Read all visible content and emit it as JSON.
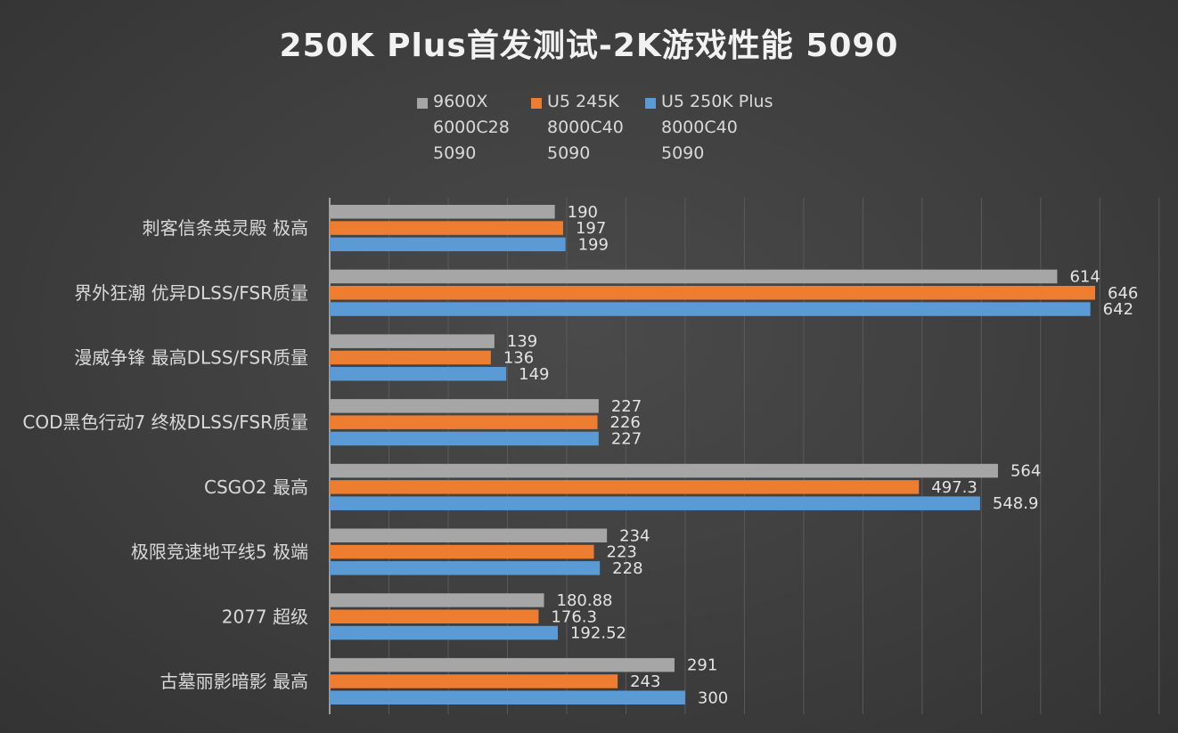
{
  "chart_data": {
    "type": "bar",
    "orientation": "horizontal",
    "title": "250K Plus首发测试-2K游戏性能 5090",
    "xlabel": "",
    "ylabel": "",
    "xlim": [
      0,
      700
    ],
    "grid": true,
    "legend_position": "top-center",
    "categories": [
      "刺客信条英灵殿 极高",
      "界外狂潮 优异DLSS/FSR质量",
      "漫威争锋 最高DLSS/FSR质量",
      "COD黑色行动7 终极DLSS/FSR质量",
      "CSGO2 最高",
      "极限竞速地平线5 极端",
      "2077 超级",
      "古墓丽影暗影 最高"
    ],
    "series": [
      {
        "name": "9600X",
        "legend_lines": [
          "9600X",
          "6000C28",
          "5090"
        ],
        "color": "#a6a6a6",
        "values": [
          190,
          614,
          139,
          227,
          564,
          234,
          180.88,
          291
        ]
      },
      {
        "name": "U5 245K",
        "legend_lines": [
          "U5 245K",
          "8000C40",
          "5090"
        ],
        "color": "#ed7d31",
        "values": [
          197,
          646,
          136,
          226,
          497.3,
          223,
          176.3,
          243
        ]
      },
      {
        "name": "U5 250K Plus",
        "legend_lines": [
          "U5 250K Plus",
          "8000C40",
          "5090"
        ],
        "color": "#5b9bd5",
        "values": [
          199,
          642,
          149,
          227,
          548.9,
          228,
          192.52,
          300
        ]
      }
    ]
  }
}
